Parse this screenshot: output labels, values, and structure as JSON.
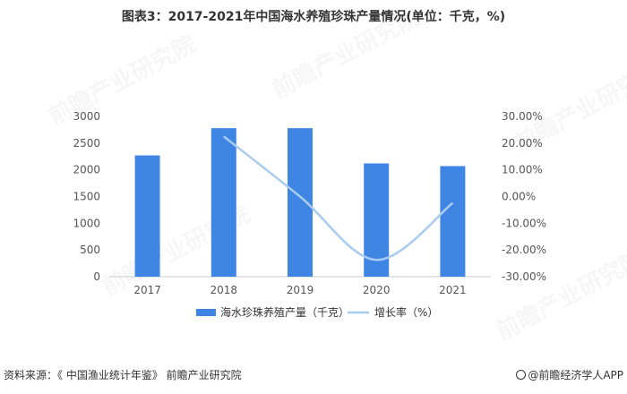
{
  "title": "图表3：2017-2021年中国海水养殖珍珠产量情况(单位：千克，%)",
  "source": "资料来源：《 中国渔业统计年鉴》 前瞻产业研究院",
  "brand": "@前瞻经济学人APP",
  "watermark": "前瞻产业研究院",
  "colors": {
    "bar": "#3f86e4",
    "line": "#a9cbf0",
    "axis": "#cccccc"
  },
  "chart_data": {
    "type": "bar",
    "categories": [
      "2017",
      "2018",
      "2019",
      "2020",
      "2021"
    ],
    "series": [
      {
        "name": "海水珍珠养殖产量（千克）",
        "type": "bar",
        "axis": "left",
        "values": [
          2270,
          2780,
          2780,
          2120,
          2070
        ]
      },
      {
        "name": "增长率（%）",
        "type": "line",
        "axis": "right",
        "values": [
          null,
          22.5,
          0.0,
          -23.7,
          -2.4
        ]
      }
    ],
    "left_axis": {
      "min": 0,
      "max": 3000,
      "ticks": [
        0,
        500,
        1000,
        1500,
        2000,
        2500,
        3000
      ]
    },
    "right_axis": {
      "min": -30,
      "max": 30,
      "ticks": [
        "-30.00%",
        "-20.00%",
        "-10.00%",
        "0.00%",
        "10.00%",
        "20.00%",
        "30.00%"
      ]
    },
    "legend": "bottom",
    "grid": false
  }
}
